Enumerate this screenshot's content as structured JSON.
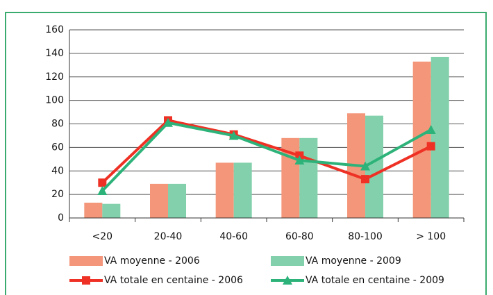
{
  "chart_data": {
    "type": "bar",
    "categories": [
      "<20",
      "20-40",
      "40-60",
      "60-80",
      "80-100",
      "> 100"
    ],
    "series": [
      {
        "name": "VA moyenne - 2006",
        "type": "bar",
        "color": "#f4967a",
        "values": [
          13,
          29,
          47,
          68,
          89,
          133
        ]
      },
      {
        "name": "VA moyenne - 2009",
        "type": "bar",
        "color": "#82d1ac",
        "values": [
          12,
          29,
          47,
          68,
          87,
          137
        ]
      },
      {
        "name": "VA totale en centaine - 2006",
        "type": "line",
        "marker": "square",
        "color": "#ee3124",
        "values": [
          30,
          83,
          71,
          53,
          33,
          61
        ]
      },
      {
        "name": "VA totale en centaine - 2009",
        "type": "line",
        "marker": "triangle",
        "color": "#2db37a",
        "values": [
          23,
          81,
          70,
          49,
          44,
          75
        ]
      }
    ],
    "ylim": [
      0,
      160
    ],
    "yticks": [
      0,
      20,
      40,
      60,
      80,
      100,
      120,
      140,
      160
    ],
    "grid": true,
    "legend": "bottom"
  }
}
